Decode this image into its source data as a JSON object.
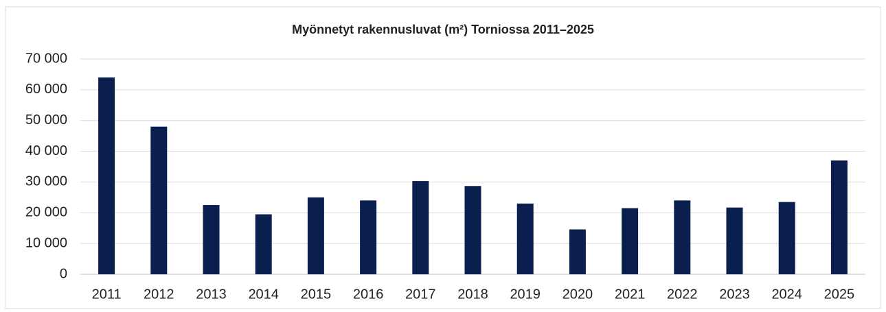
{
  "chart_data": {
    "type": "bar",
    "title": "Myönnetyt rakennusluvat (m²) Torniossa 2011–2025",
    "categories": [
      "2011",
      "2012",
      "2013",
      "2014",
      "2015",
      "2016",
      "2017",
      "2018",
      "2019",
      "2020",
      "2021",
      "2022",
      "2023",
      "2024",
      "2025"
    ],
    "values": [
      64000,
      48000,
      22500,
      19500,
      25000,
      24000,
      30300,
      28700,
      23000,
      14600,
      21500,
      24000,
      21700,
      23500,
      37000
    ],
    "color": "#0a1f4e",
    "ylim": [
      0,
      70000
    ],
    "yticks": [
      0,
      {
        "value": 10000,
        "label": "10 000"
      },
      {
        "value": 20000,
        "label": "20 000"
      },
      {
        "value": 30000,
        "label": "30 000"
      },
      {
        "value": 40000,
        "label": "40 000"
      },
      {
        "value": 50000,
        "label": "50 000"
      },
      {
        "value": 60000,
        "label": "60 000"
      },
      {
        "value": 70000,
        "label": "70 000"
      }
    ],
    "grid": true
  }
}
